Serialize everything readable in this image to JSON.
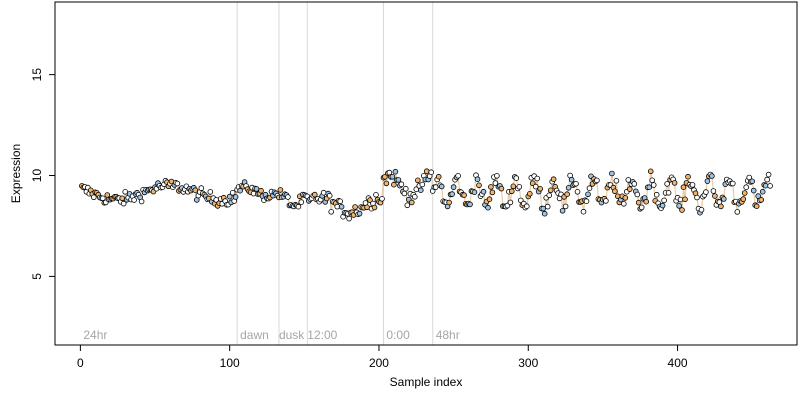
{
  "chart_data": {
    "type": "scatter",
    "xlabel": "Sample index",
    "ylabel": "Expression",
    "xlim": [
      -17,
      480
    ],
    "ylim": [
      1.6,
      18.6
    ],
    "x_ticks": [
      0,
      100,
      200,
      300,
      400
    ],
    "y_ticks": [
      5,
      10,
      15
    ],
    "grid": false,
    "legend": "none",
    "colors": {
      "point_outline": "#000000",
      "fill_blue": "#9ec5e8",
      "fill_orange": "#f0b46e",
      "fill_white": "#ffffff",
      "line_color": "#e0b98a",
      "vline_color": "#d9d9d9",
      "annotation_color": "#a6a6a6"
    },
    "vlines": [
      105,
      133,
      152,
      203,
      236
    ],
    "annotations": [
      {
        "x": 2,
        "label": "24hr"
      },
      {
        "x": 107,
        "label": "dawn"
      },
      {
        "x": 133,
        "label": "dusk"
      },
      {
        "x": 152,
        "label": "12:00"
      },
      {
        "x": 205,
        "label": "0:00"
      },
      {
        "x": 238,
        "label": "48hr"
      }
    ],
    "segments": [
      {
        "start": 1,
        "length": 104,
        "base": 9.15,
        "amp": 0.35,
        "period": 70,
        "phase": 2.6,
        "noise": 0.22
      },
      {
        "start": 105,
        "length": 28,
        "base": 9.2,
        "amp": 0.2,
        "period": 30,
        "phase": 0.5,
        "noise": 0.18
      },
      {
        "start": 133,
        "length": 19,
        "base": 8.75,
        "amp": 0.25,
        "period": 18,
        "phase": 1.0,
        "noise": 0.22
      },
      {
        "start": 152,
        "length": 51,
        "base": 8.55,
        "amp": 0.35,
        "period": 40,
        "phase": 0.2,
        "noise": 0.28
      },
      {
        "start": 203,
        "length": 33,
        "base": 9.5,
        "amp": 0.5,
        "period": 28,
        "phase": 0.6,
        "noise": 0.3
      },
      {
        "start": 236,
        "length": 227,
        "base": 9.15,
        "amp": 0.65,
        "period": 13,
        "phase": 0.0,
        "noise": 0.32
      }
    ],
    "total_points": 462
  }
}
